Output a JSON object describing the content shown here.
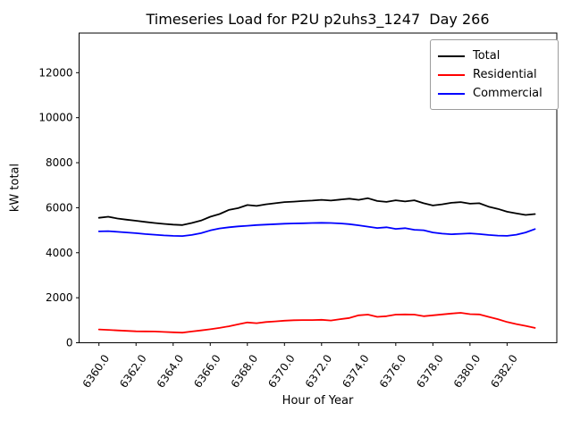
{
  "title": "Timeseries Load for P2U p2uhs3_1247  Day 266",
  "axes": {
    "xlabel": "Hour of Year",
    "ylabel": "kW total"
  },
  "legend": {
    "position": "upper right",
    "items": [
      {
        "label": "Total",
        "color": "#000000"
      },
      {
        "label": "Residential",
        "color": "#ff0000"
      },
      {
        "label": "Commercial",
        "color": "#0000ff"
      }
    ]
  },
  "chart_data": {
    "type": "line",
    "title": "Timeseries Load for P2U p2uhs3_1247  Day 266",
    "xlabel": "Hour of Year",
    "ylabel": "kW total",
    "grid": false,
    "legend_position": "upper right",
    "xlim": [
      6358.93,
      6384.68
    ],
    "ylim": [
      0,
      13760
    ],
    "x_ticks": [
      6360,
      6362,
      6364,
      6366,
      6368,
      6370,
      6372,
      6374,
      6376,
      6378,
      6380,
      6382
    ],
    "x_tick_labels": [
      "6360.0",
      "6362.0",
      "6364.0",
      "6366.0",
      "6368.0",
      "6370.0",
      "6372.0",
      "6374.0",
      "6376.0",
      "6378.0",
      "6380.0",
      "6382.0"
    ],
    "y_ticks": [
      0,
      2000,
      4000,
      6000,
      8000,
      10000,
      12000
    ],
    "y_tick_labels": [
      "0",
      "2000",
      "4000",
      "6000",
      "8000",
      "10000",
      "12000"
    ],
    "x_tick_rotation_deg": 55,
    "x": [
      6360.0,
      6360.5,
      6361.0,
      6361.5,
      6362.0,
      6362.5,
      6363.0,
      6363.5,
      6364.0,
      6364.5,
      6365.0,
      6365.5,
      6366.0,
      6366.5,
      6367.0,
      6367.5,
      6368.0,
      6368.5,
      6369.0,
      6369.5,
      6370.0,
      6370.5,
      6371.0,
      6371.5,
      6372.0,
      6372.5,
      6373.0,
      6373.5,
      6374.0,
      6374.5,
      6375.0,
      6375.5,
      6376.0,
      6376.5,
      6377.0,
      6377.5,
      6378.0,
      6378.5,
      6379.0,
      6379.5,
      6380.0,
      6380.5,
      6381.0,
      6381.5,
      6382.0,
      6382.5,
      6383.0,
      6383.5
    ],
    "series": [
      {
        "name": "Total",
        "color": "#000000",
        "values": [
          5550,
          5600,
          5520,
          5470,
          5420,
          5370,
          5320,
          5280,
          5250,
          5230,
          5320,
          5430,
          5600,
          5720,
          5900,
          5980,
          6120,
          6080,
          6150,
          6200,
          6250,
          6270,
          6300,
          6320,
          6350,
          6320,
          6360,
          6400,
          6350,
          6420,
          6300,
          6260,
          6330,
          6280,
          6330,
          6200,
          6100,
          6150,
          6220,
          6250,
          6180,
          6200,
          6050,
          5950,
          5820,
          5750,
          5680,
          5720
        ]
      },
      {
        "name": "Residential",
        "color": "#ff0000",
        "values": [
          590,
          570,
          550,
          530,
          510,
          505,
          500,
          480,
          465,
          450,
          500,
          550,
          600,
          660,
          730,
          820,
          900,
          870,
          920,
          950,
          980,
          1000,
          1010,
          1010,
          1020,
          990,
          1050,
          1100,
          1220,
          1250,
          1150,
          1180,
          1250,
          1260,
          1250,
          1180,
          1220,
          1260,
          1300,
          1330,
          1270,
          1260,
          1150,
          1050,
          920,
          830,
          750,
          660
        ]
      },
      {
        "name": "Commercial",
        "color": "#0000ff",
        "values": [
          4950,
          4960,
          4930,
          4900,
          4870,
          4830,
          4800,
          4770,
          4750,
          4740,
          4790,
          4870,
          4990,
          5080,
          5130,
          5170,
          5200,
          5230,
          5250,
          5270,
          5290,
          5300,
          5310,
          5320,
          5330,
          5320,
          5300,
          5270,
          5220,
          5160,
          5100,
          5130,
          5060,
          5090,
          5020,
          5000,
          4900,
          4850,
          4820,
          4840,
          4860,
          4830,
          4790,
          4760,
          4750,
          4800,
          4900,
          5050
        ]
      }
    ]
  }
}
